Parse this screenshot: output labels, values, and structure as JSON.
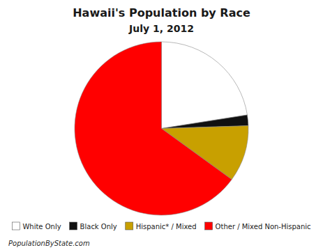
{
  "chart_data": {
    "type": "pie",
    "title": "Hawaii's Population by Race",
    "subtitle": "July 1, 2012",
    "categories": [
      "White Only",
      "Black Only",
      "Hispanic* / Mixed",
      "Other / Mixed Non-Hispanic"
    ],
    "values": [
      22.5,
      2.0,
      10.5,
      65.0
    ],
    "colors": [
      "#ffffff",
      "#111111",
      "#c8a000",
      "#ff0000"
    ],
    "legend": "bottom",
    "annotations": [
      "PopulationByState.com"
    ]
  }
}
